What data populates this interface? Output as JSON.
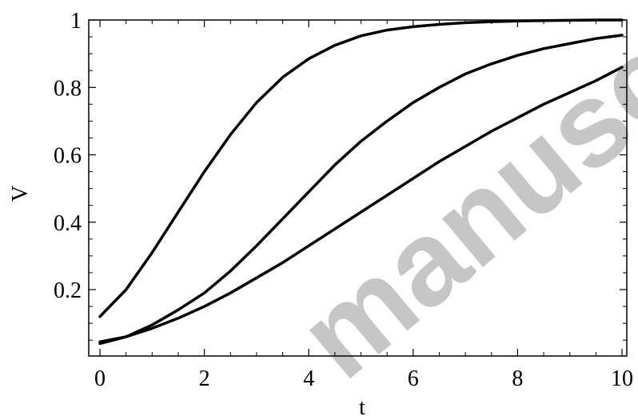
{
  "chart_data": {
    "type": "line",
    "title": "",
    "xlabel": "t",
    "ylabel": "V",
    "xlim": [
      0,
      10
    ],
    "ylim": [
      0,
      1
    ],
    "grid": false,
    "x_ticks": [
      0,
      2,
      4,
      6,
      8,
      10
    ],
    "x_tick_labels": [
      "0",
      "2",
      "4",
      "6",
      "8",
      "10"
    ],
    "y_ticks": [
      0.2,
      0.4,
      0.6,
      0.8,
      1
    ],
    "y_tick_labels": [
      "0.2",
      "0.4",
      "0.6",
      "0.8",
      "1"
    ],
    "line_color": "#000000",
    "series": [
      {
        "x": [
          0,
          0.5,
          1,
          1.5,
          2,
          2.5,
          3,
          3.5,
          4,
          4.5,
          5,
          5.5,
          6,
          6.5,
          7,
          7.5,
          8,
          8.5,
          9,
          9.5,
          10
        ],
        "values": [
          0.12,
          0.2,
          0.31,
          0.43,
          0.55,
          0.66,
          0.755,
          0.83,
          0.885,
          0.925,
          0.953,
          0.97,
          0.98,
          0.987,
          0.992,
          0.995,
          0.997,
          0.998,
          0.999,
          1.0,
          1.0
        ]
      },
      {
        "x": [
          0,
          0.5,
          1,
          1.5,
          2,
          2.5,
          3,
          3.5,
          4,
          4.5,
          5,
          5.5,
          6,
          6.5,
          7,
          7.5,
          8,
          8.5,
          9,
          9.5,
          10
        ],
        "values": [
          0.045,
          0.06,
          0.095,
          0.14,
          0.19,
          0.255,
          0.33,
          0.41,
          0.49,
          0.57,
          0.64,
          0.7,
          0.755,
          0.8,
          0.84,
          0.87,
          0.895,
          0.915,
          0.93,
          0.945,
          0.955
        ]
      },
      {
        "x": [
          0,
          0.5,
          1,
          1.5,
          2,
          2.5,
          3,
          3.5,
          4,
          4.5,
          5,
          5.5,
          6,
          6.5,
          7,
          7.5,
          8,
          8.5,
          9,
          9.5,
          10
        ],
        "values": [
          0.04,
          0.06,
          0.085,
          0.115,
          0.15,
          0.19,
          0.235,
          0.28,
          0.33,
          0.38,
          0.43,
          0.48,
          0.53,
          0.58,
          0.625,
          0.67,
          0.71,
          0.75,
          0.785,
          0.82,
          0.86
        ]
      }
    ]
  },
  "watermark_text": "manuscript"
}
